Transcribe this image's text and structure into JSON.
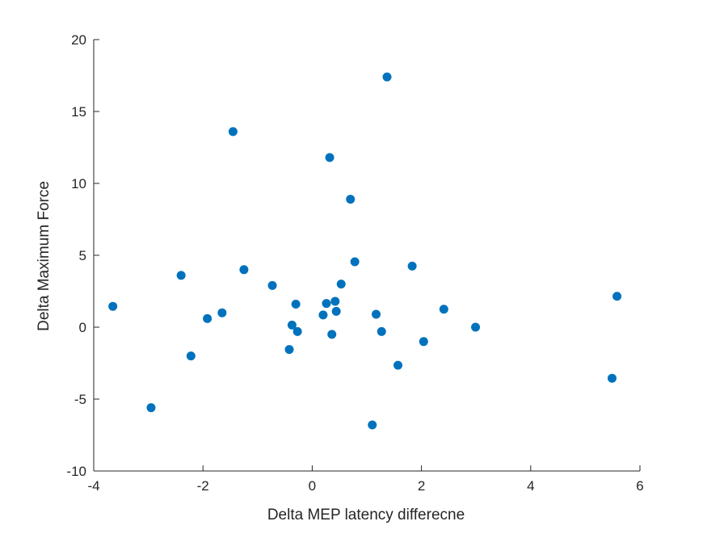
{
  "chart_data": {
    "type": "scatter",
    "title": "",
    "xlabel": "Delta MEP latency differecne",
    "ylabel": "Delta Maximum Force",
    "xlim": [
      -4,
      6
    ],
    "ylim": [
      -10,
      20
    ],
    "xticks": [
      -4,
      -2,
      0,
      2,
      4,
      6
    ],
    "yticks": [
      -10,
      -5,
      0,
      5,
      10,
      15,
      20
    ],
    "xtick_labels": [
      "-4",
      "-2",
      "0",
      "2",
      "4",
      "6"
    ],
    "ytick_labels": [
      "-10",
      "-5",
      "0",
      "5",
      "10",
      "15",
      "20"
    ],
    "grid": false,
    "marker_color": "#0072BD",
    "axis_color": "#262626",
    "points": [
      {
        "x": -3.65,
        "y": 1.45
      },
      {
        "x": -2.95,
        "y": -5.6
      },
      {
        "x": -2.4,
        "y": 3.6
      },
      {
        "x": -2.22,
        "y": -2.0
      },
      {
        "x": -1.92,
        "y": 0.6
      },
      {
        "x": -1.65,
        "y": 1.0
      },
      {
        "x": -1.45,
        "y": 13.6
      },
      {
        "x": -1.25,
        "y": 4.0
      },
      {
        "x": -0.73,
        "y": 2.9
      },
      {
        "x": -0.42,
        "y": -1.55
      },
      {
        "x": -0.37,
        "y": 0.15
      },
      {
        "x": -0.3,
        "y": 1.6
      },
      {
        "x": -0.27,
        "y": -0.3
      },
      {
        "x": 0.2,
        "y": 0.85
      },
      {
        "x": 0.26,
        "y": 1.65
      },
      {
        "x": 0.32,
        "y": 11.8
      },
      {
        "x": 0.36,
        "y": -0.5
      },
      {
        "x": 0.42,
        "y": 1.8
      },
      {
        "x": 0.44,
        "y": 1.1
      },
      {
        "x": 0.53,
        "y": 3.0
      },
      {
        "x": 0.7,
        "y": 8.9
      },
      {
        "x": 0.78,
        "y": 4.55
      },
      {
        "x": 1.1,
        "y": -6.8
      },
      {
        "x": 1.17,
        "y": 0.9
      },
      {
        "x": 1.27,
        "y": -0.3
      },
      {
        "x": 1.37,
        "y": 17.4
      },
      {
        "x": 1.57,
        "y": -2.65
      },
      {
        "x": 1.83,
        "y": 4.25
      },
      {
        "x": 2.04,
        "y": -1.0
      },
      {
        "x": 2.41,
        "y": 1.25
      },
      {
        "x": 2.99,
        "y": 0.0
      },
      {
        "x": 5.49,
        "y": -3.55
      },
      {
        "x": 5.58,
        "y": 2.15
      }
    ]
  }
}
